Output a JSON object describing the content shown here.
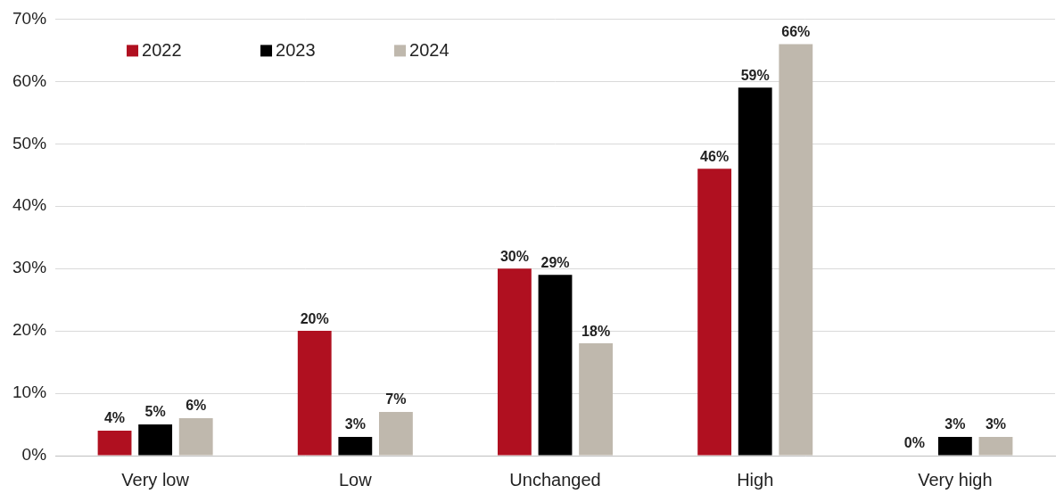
{
  "chart_data": {
    "type": "bar",
    "categories": [
      "Very low",
      "Low",
      "Unchanged",
      "High",
      "Very high"
    ],
    "series": [
      {
        "name": "2022",
        "color": "#b01020",
        "values": [
          4,
          20,
          30,
          46,
          0
        ],
        "value_labels": [
          "4%",
          "20%",
          "30%",
          "46%",
          "0%"
        ]
      },
      {
        "name": "2023",
        "color": "#000000",
        "values": [
          5,
          3,
          29,
          59,
          3
        ],
        "value_labels": [
          "5%",
          "3%",
          "29%",
          "59%",
          "3%"
        ]
      },
      {
        "name": "2024",
        "color": "#bfb8ad",
        "values": [
          6,
          7,
          18,
          66,
          3
        ],
        "value_labels": [
          "6%",
          "7%",
          "18%",
          "66%",
          "3%"
        ]
      }
    ],
    "ylim": [
      0,
      70
    ],
    "yticks": [
      {
        "value": 0,
        "label": "0%"
      },
      {
        "value": 10,
        "label": "10%"
      },
      {
        "value": 20,
        "label": "20%"
      },
      {
        "value": 30,
        "label": "30%"
      },
      {
        "value": 40,
        "label": "40%"
      },
      {
        "value": 50,
        "label": "50%"
      },
      {
        "value": 60,
        "label": "60%"
      },
      {
        "value": 70,
        "label": "70%"
      }
    ],
    "grid": true,
    "legend": "top-left",
    "data_labels": true
  }
}
